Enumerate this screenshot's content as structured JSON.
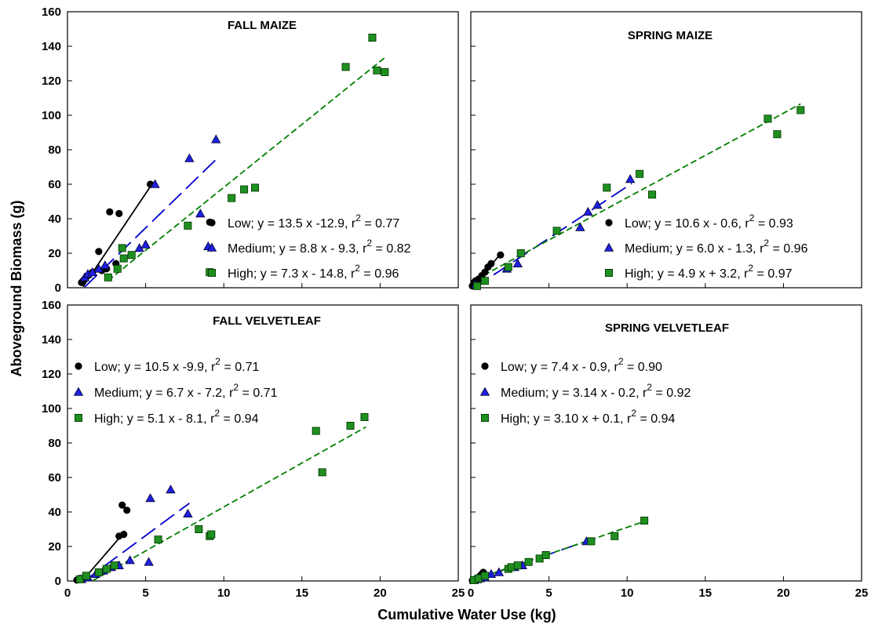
{
  "chart_data": {
    "type": "scatter",
    "xlabel": "Cumulative Water Use (kg)",
    "ylabel": "Aboveground Biomass (g)",
    "xlim": [
      0,
      25
    ],
    "ylim": [
      0,
      160
    ],
    "x_ticks": [
      0,
      5,
      10,
      15,
      20,
      25
    ],
    "y_ticks": [
      0,
      20,
      40,
      60,
      80,
      100,
      120,
      140,
      160
    ],
    "grid": false,
    "colors": {
      "Low": "#000000",
      "Medium": "#0000cc",
      "High": "#008000",
      "marker_High": "#1a8a1a"
    },
    "panels": [
      {
        "title": "FALL MAIZE",
        "legend_position": "lower-right",
        "series": [
          {
            "name": "Low",
            "marker": "circle",
            "equation": "Low; y = 13.5 x -12.9, r",
            "r2": "= 0.77",
            "fit": {
              "slope": 13.5,
              "intercept": -12.9,
              "x_range": [
                1.0,
                5.3
              ]
            },
            "x": [
              0.9,
              1.0,
              1.1,
              1.3,
              1.6,
              2.0,
              2.2,
              2.5,
              2.7,
              3.1,
              3.3,
              5.3,
              9.1
            ],
            "y": [
              3,
              4,
              5,
              7,
              9,
              21,
              10,
              11,
              44,
              14,
              43,
              60,
              38
            ]
          },
          {
            "name": "Medium",
            "marker": "triangle",
            "equation": "Medium; y = 8.8 x - 9.3, r",
            "r2": "= 0.82",
            "fit": {
              "slope": 8.8,
              "intercept": -9.3,
              "x_range": [
                1.1,
                9.6
              ]
            },
            "x": [
              1.1,
              1.3,
              1.6,
              2.0,
              2.4,
              4.6,
              5.0,
              5.6,
              7.8,
              8.5,
              9.0,
              9.5
            ],
            "y": [
              6,
              8,
              9,
              11,
              13,
              23,
              25,
              60,
              75,
              43,
              24,
              86
            ]
          },
          {
            "name": "High",
            "marker": "square",
            "equation": "High; y = 7.3 x - 14.8, r",
            "r2": "= 0.96",
            "fit": {
              "slope": 7.3,
              "intercept": -14.8,
              "x_range": [
                2.6,
                20.3
              ]
            },
            "x": [
              2.6,
              3.2,
              3.5,
              3.6,
              4.1,
              7.7,
              9.1,
              10.5,
              11.3,
              12.0,
              17.8,
              19.5,
              19.8,
              20.3
            ],
            "y": [
              6,
              11,
              23,
              17,
              19,
              36,
              9,
              52,
              57,
              58,
              128,
              145,
              126,
              125
            ]
          }
        ]
      },
      {
        "title": "SPRING MAIZE",
        "legend_position": "lower-right",
        "series": [
          {
            "name": "Low",
            "marker": "circle",
            "equation": "Low; y = 10.6 x - 0.6, r",
            "r2": "= 0.93",
            "fit": {
              "slope": 10.6,
              "intercept": -0.6,
              "x_range": [
                0.1,
                1.9
              ]
            },
            "x": [
              0.1,
              0.2,
              0.3,
              0.5,
              0.7,
              0.9,
              1.1,
              1.3,
              1.9
            ],
            "y": [
              1,
              3,
              4,
              5,
              7,
              9,
              12,
              14,
              19
            ]
          },
          {
            "name": "Medium",
            "marker": "triangle",
            "equation": "Medium; y = 6.0 x - 1.3, r",
            "r2": "= 0.96",
            "fit": {
              "slope": 6.0,
              "intercept": -1.3,
              "x_range": [
                0.2,
                10.3
              ]
            },
            "x": [
              0.3,
              0.8,
              2.3,
              3.0,
              7.0,
              7.5,
              8.1,
              10.2
            ],
            "y": [
              2,
              4,
              11,
              14,
              35,
              44,
              48,
              63
            ]
          },
          {
            "name": "High",
            "marker": "square",
            "equation": "High; y = 4.9 x + 3.2, r",
            "r2": "= 0.97",
            "fit": {
              "slope": 4.9,
              "intercept": 3.2,
              "x_range": [
                0.3,
                21.1
              ]
            },
            "x": [
              0.4,
              0.9,
              2.4,
              3.2,
              5.5,
              8.7,
              10.8,
              11.6,
              19.0,
              19.6,
              21.1
            ],
            "y": [
              1,
              4,
              12,
              20,
              33,
              58,
              66,
              54,
              98,
              89,
              103
            ]
          }
        ]
      },
      {
        "title": "FALL VELVETLEAF",
        "legend_position": "upper-left",
        "series": [
          {
            "name": "Low",
            "marker": "circle",
            "equation": "Low; y = 10.5 x -9.9, r",
            "r2": "= 0.71",
            "fit": {
              "slope": 10.5,
              "intercept": -9.9,
              "x_range": [
                0.95,
                3.7
              ]
            },
            "x": [
              0.6,
              0.7,
              0.8,
              3.3,
              3.5,
              3.6,
              3.8
            ],
            "y": [
              0.5,
              1,
              1.5,
              26,
              44,
              27,
              41
            ]
          },
          {
            "name": "Medium",
            "marker": "triangle",
            "equation": "Medium; y = 6.7 x - 7.2, r",
            "r2": "= 0.71",
            "fit": {
              "slope": 6.7,
              "intercept": -7.2,
              "x_range": [
                1.1,
                7.8
              ]
            },
            "x": [
              0.9,
              1.3,
              1.8,
              2.3,
              2.8,
              3.3,
              4.0,
              5.2,
              5.3,
              6.6,
              7.7
            ],
            "y": [
              1,
              2,
              4,
              6,
              8,
              9,
              12,
              11,
              48,
              53,
              39
            ]
          },
          {
            "name": "High",
            "marker": "square",
            "equation": "High; y = 5.1 x - 8.1, r",
            "r2": "= 0.94",
            "fit": {
              "slope": 5.1,
              "intercept": -8.1,
              "x_range": [
                1.6,
                19.1
              ]
            },
            "x": [
              0.8,
              1.2,
              2.0,
              2.5,
              3.0,
              5.8,
              8.4,
              9.1,
              9.2,
              15.9,
              16.3,
              18.1,
              19.0
            ],
            "y": [
              1,
              3,
              5,
              7,
              9,
              24,
              30,
              26,
              27,
              87,
              63,
              90,
              95
            ]
          }
        ]
      },
      {
        "title": "SPRING VELVETLEAF",
        "legend_position": "upper-left",
        "series": [
          {
            "name": "Low",
            "marker": "circle",
            "equation": "Low; y = 7.4 x - 0.9, r",
            "r2": "= 0.90",
            "fit": {
              "slope": 7.4,
              "intercept": -0.9,
              "x_range": [
                0.1,
                0.8
              ]
            },
            "x": [
              0.1,
              0.2,
              0.3,
              0.4,
              0.5,
              0.6,
              0.7,
              0.8
            ],
            "y": [
              0.3,
              0.5,
              1,
              1.5,
              2,
              3,
              4,
              5
            ]
          },
          {
            "name": "Medium",
            "marker": "triangle",
            "equation": "Medium; y = 3.14 x - 0.2, r",
            "r2": "= 0.92",
            "fit": {
              "slope": 3.14,
              "intercept": -0.2,
              "x_range": [
                0.1,
                7.6
              ]
            },
            "x": [
              0.2,
              0.4,
              0.6,
              0.9,
              1.3,
              1.8,
              2.8,
              3.3,
              7.4
            ],
            "y": [
              0.5,
              1,
              1.5,
              2,
              4,
              5,
              8,
              9,
              23
            ]
          },
          {
            "name": "High",
            "marker": "square",
            "equation": "High; y = 3.10 x + 0.1, r",
            "r2": "= 0.94",
            "fit": {
              "slope": 3.1,
              "intercept": 0.1,
              "x_range": [
                0.2,
                11.3
              ]
            },
            "x": [
              0.2,
              0.5,
              0.9,
              2.4,
              2.6,
              3.0,
              3.7,
              4.4,
              4.8,
              7.7,
              9.2,
              11.1
            ],
            "y": [
              0.5,
              1.5,
              3,
              7,
              8,
              9,
              11,
              13,
              15,
              23,
              26,
              35
            ]
          }
        ]
      }
    ]
  }
}
